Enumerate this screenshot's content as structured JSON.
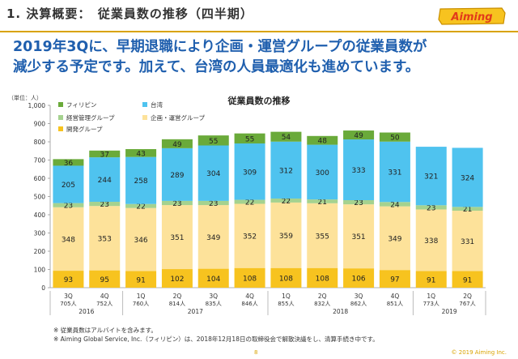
{
  "header": {
    "title": "1. 決算概要：　従業員数の推移（四半期）",
    "logo_text": "Aiming"
  },
  "headline": {
    "line1": "2019年3Qに、早期退職により企画・運営グループの従業員数が",
    "line2": "減少する予定です。加えて、台湾の人員最適化も進めています。"
  },
  "unit_label": "（単位：人）",
  "footnotes": [
    "※ 従業員数はアルバイトを含みます。",
    "※ Aiming Global Service, Inc.（フィリピン）は、2018年12月18日の取締役会で解散決議をし、清算手続き中です。"
  ],
  "page_number": "8",
  "copyright": "© 2019 Aiming Inc.",
  "colors": {
    "philippines": "#6aaa3a",
    "taiwan": "#4fc3ef",
    "management": "#a5d28f",
    "planning_ops": "#fde29a",
    "development": "#f7c31f",
    "accent": "#d9a300",
    "headline": "#1f5fae"
  },
  "chart_data": {
    "type": "bar",
    "stacked": true,
    "title": "従業員数の推移",
    "ylim": [
      0,
      1000
    ],
    "yticks": [
      "0",
      "100",
      "200",
      "300",
      "400",
      "500",
      "600",
      "700",
      "800",
      "900",
      "1,000"
    ],
    "grid": false,
    "legend_position": "top-left",
    "categories": [
      {
        "quarter": "3Q",
        "total": "705人"
      },
      {
        "quarter": "4Q",
        "total": "752人"
      },
      {
        "quarter": "1Q",
        "total": "760人"
      },
      {
        "quarter": "2Q",
        "total": "814人"
      },
      {
        "quarter": "3Q",
        "total": "835人"
      },
      {
        "quarter": "4Q",
        "total": "846人"
      },
      {
        "quarter": "1Q",
        "total": "855人"
      },
      {
        "quarter": "2Q",
        "total": "832人"
      },
      {
        "quarter": "3Q",
        "total": "862人"
      },
      {
        "quarter": "4Q",
        "total": "851人"
      },
      {
        "quarter": "1Q",
        "total": "773人"
      },
      {
        "quarter": "2Q",
        "total": "767人"
      }
    ],
    "years": [
      {
        "label": "2016",
        "span": [
          0,
          1
        ]
      },
      {
        "label": "2017",
        "span": [
          2,
          5
        ]
      },
      {
        "label": "2018",
        "span": [
          6,
          9
        ]
      },
      {
        "label": "2019",
        "span": [
          10,
          11
        ]
      }
    ],
    "series": [
      {
        "name": "開発グループ",
        "color_key": "development",
        "values": [
          93,
          95,
          91,
          102,
          104,
          108,
          108,
          108,
          106,
          97,
          91,
          91
        ]
      },
      {
        "name": "企画・運営グループ",
        "color_key": "planning_ops",
        "values": [
          348,
          353,
          346,
          351,
          349,
          352,
          359,
          355,
          351,
          349,
          338,
          331
        ]
      },
      {
        "name": "経営管理グループ",
        "color_key": "management",
        "values": [
          23,
          23,
          22,
          23,
          23,
          22,
          22,
          21,
          23,
          24,
          23,
          21
        ]
      },
      {
        "name": "台湾",
        "color_key": "taiwan",
        "values": [
          205,
          244,
          258,
          289,
          304,
          309,
          312,
          300,
          333,
          331,
          321,
          324
        ]
      },
      {
        "name": "フィリピン",
        "color_key": "philippines",
        "values": [
          36,
          37,
          43,
          49,
          55,
          55,
          54,
          48,
          49,
          50,
          null,
          null
        ]
      }
    ],
    "legend": [
      {
        "name": "フィリピン",
        "color_key": "philippines"
      },
      {
        "name": "台湾",
        "color_key": "taiwan"
      },
      {
        "name": "経営管理グループ",
        "color_key": "management"
      },
      {
        "name": "企画・運営グループ",
        "color_key": "planning_ops"
      },
      {
        "name": "開発グループ",
        "color_key": "development"
      }
    ]
  }
}
